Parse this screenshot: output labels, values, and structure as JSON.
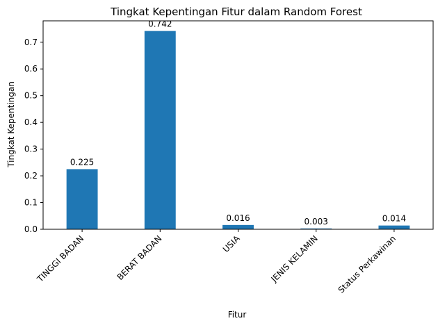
{
  "chart_data": {
    "type": "bar",
    "title": "Tingkat Kepentingan Fitur dalam Random Forest",
    "xlabel": "Fitur",
    "ylabel": "Tingkat Kepentingan",
    "categories": [
      "TINGGI BADAN",
      "BERAT BADAN",
      "USIA",
      "JENIS KELAMIN",
      "Status Perkawinan"
    ],
    "values": [
      0.225,
      0.742,
      0.016,
      0.003,
      0.014
    ],
    "data_labels": [
      "0.225",
      "0.742",
      "0.016",
      "0.003",
      "0.014"
    ],
    "yticks": [
      0.0,
      0.1,
      0.2,
      0.3,
      0.4,
      0.5,
      0.6,
      0.7
    ],
    "ytick_labels": [
      "0.0",
      "0.1",
      "0.2",
      "0.3",
      "0.4",
      "0.5",
      "0.6",
      "0.7"
    ],
    "ylim": [
      0,
      0.78
    ],
    "grid": false,
    "bar_color": "#1f77b4",
    "legend": "none"
  }
}
